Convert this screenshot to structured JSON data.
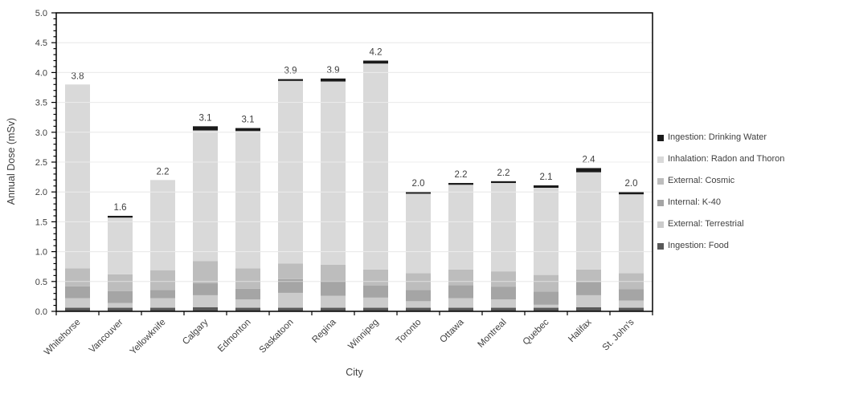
{
  "chart_data": {
    "type": "bar",
    "stacked": true,
    "title": "",
    "xlabel": "City",
    "ylabel": "Annual Dose (mSv)",
    "ylim": [
      0,
      5
    ],
    "ytick_step_major": 0.5,
    "ytick_step_minor": 0.1,
    "ytick_labels": [
      "0.0",
      "0.5",
      "1.0",
      "1.5",
      "2.0",
      "2.5",
      "3.0",
      "3.5",
      "4.0",
      "4.5",
      "5.0"
    ],
    "grid": true,
    "legend_position": "right",
    "categories": [
      "Whitehorse",
      "Vancouver",
      "Yellowknife",
      "Calgary",
      "Edmonton",
      "Saskatoon",
      "Regina",
      "Winnipeg",
      "Toronto",
      "Ottawa",
      "Montreal",
      "Quebec",
      "Halifax",
      "St. John's"
    ],
    "total_labels": [
      "3.8",
      "1.6",
      "2.2",
      "3.1",
      "3.1",
      "3.9",
      "3.9",
      "4.2",
      "2.0",
      "2.2",
      "2.2",
      "2.1",
      "2.4",
      "2.0"
    ],
    "series": [
      {
        "name": "Ingestion: Food",
        "color": "#595959",
        "values": [
          0.06,
          0.06,
          0.06,
          0.07,
          0.06,
          0.06,
          0.06,
          0.06,
          0.06,
          0.06,
          0.06,
          0.06,
          0.07,
          0.06
        ]
      },
      {
        "name": "External: Terrestrial",
        "color": "#cbcbcb",
        "values": [
          0.16,
          0.08,
          0.16,
          0.2,
          0.14,
          0.25,
          0.2,
          0.17,
          0.11,
          0.16,
          0.14,
          0.05,
          0.2,
          0.12
        ]
      },
      {
        "name": "Internal: K-40",
        "color": "#a5a5a5",
        "values": [
          0.2,
          0.2,
          0.14,
          0.2,
          0.18,
          0.23,
          0.25,
          0.2,
          0.19,
          0.22,
          0.21,
          0.22,
          0.22,
          0.19
        ]
      },
      {
        "name": "External: Cosmic",
        "color": "#bdbdbd",
        "values": [
          0.3,
          0.28,
          0.33,
          0.37,
          0.34,
          0.26,
          0.27,
          0.27,
          0.28,
          0.26,
          0.26,
          0.28,
          0.21,
          0.27
        ]
      },
      {
        "name": "Inhalation: Radon and Thoron",
        "color": "#d9d9d9",
        "values": [
          3.08,
          0.95,
          1.51,
          2.19,
          2.3,
          3.06,
          3.07,
          3.45,
          1.33,
          1.42,
          1.48,
          1.46,
          1.63,
          1.32
        ]
      },
      {
        "name": "Ingestion: Drinking Water",
        "color": "#1a1a1a",
        "values": [
          0.0,
          0.03,
          0.0,
          0.07,
          0.05,
          0.03,
          0.05,
          0.05,
          0.03,
          0.03,
          0.03,
          0.04,
          0.07,
          0.04
        ]
      }
    ],
    "legend": [
      {
        "label": "Ingestion: Drinking Water",
        "color": "#1a1a1a"
      },
      {
        "label": "Inhalation: Radon and Thoron",
        "color": "#d9d9d9"
      },
      {
        "label": "External: Cosmic",
        "color": "#bdbdbd"
      },
      {
        "label": "Internal: K-40",
        "color": "#a5a5a5"
      },
      {
        "label": "External: Terrestrial",
        "color": "#cbcbcb"
      },
      {
        "label": "Ingestion: Food",
        "color": "#595959"
      }
    ]
  },
  "styles": {
    "frame_color": "#000000",
    "gridline_color": "#d9d9d9",
    "text_color": "#3f3f3f",
    "background": "#ffffff"
  }
}
